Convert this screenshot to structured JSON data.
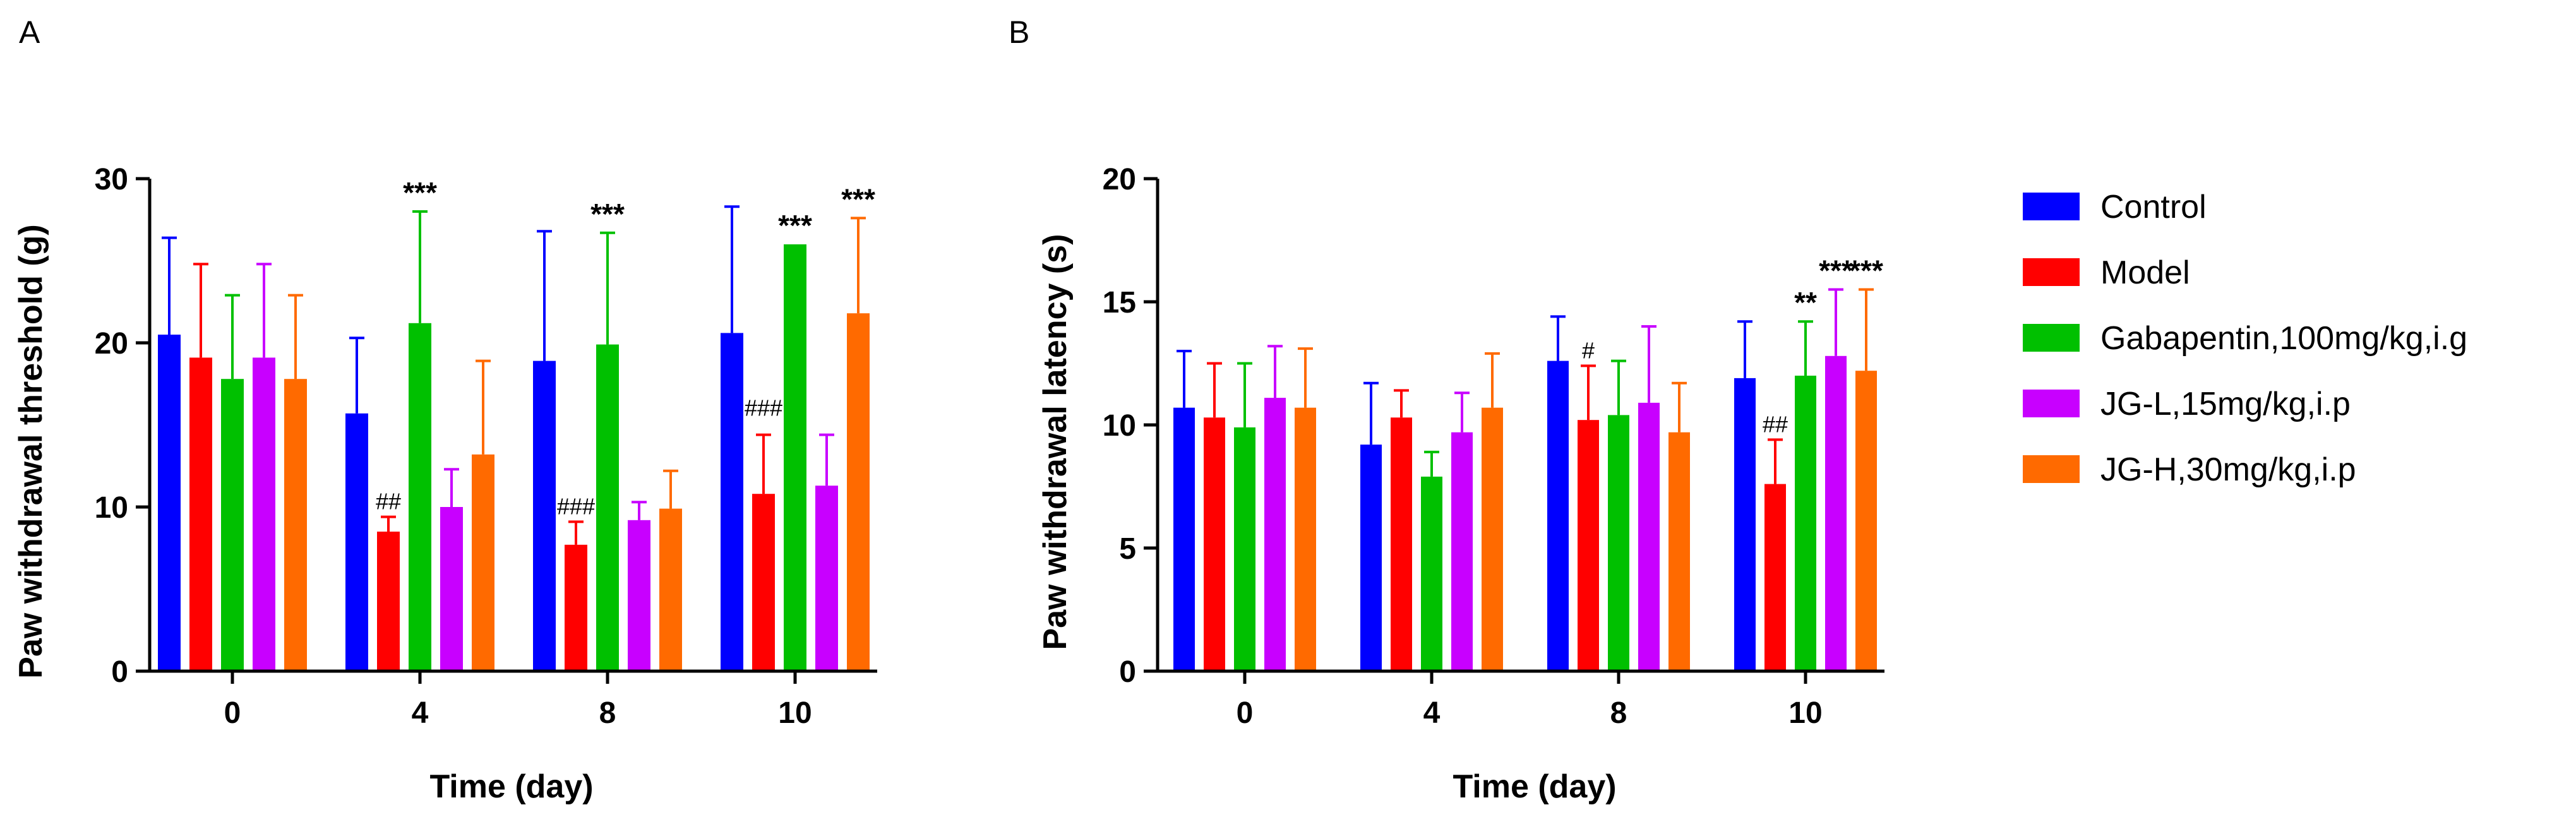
{
  "series_colors": [
    "#0000ff",
    "#ff0000",
    "#00c000",
    "#c800ff",
    "#ff6a00"
  ],
  "chart_data": [
    {
      "panel": "A",
      "type": "bar",
      "categories": [
        "0",
        "4",
        "8",
        "10"
      ],
      "xlabel": "Time (day)",
      "ylabel": "Paw withdrawal threshold (g)",
      "ylim": [
        0,
        30
      ],
      "yticks": [
        "0",
        "10",
        "20",
        "30"
      ],
      "series": [
        {
          "name": "Control",
          "values": [
            20.5,
            15.7,
            18.9,
            20.6
          ],
          "errors": [
            5.9,
            4.6,
            7.9,
            7.7
          ]
        },
        {
          "name": "Model",
          "values": [
            19.1,
            8.5,
            7.7,
            10.8
          ],
          "errors": [
            5.7,
            0.9,
            1.4,
            3.6
          ]
        },
        {
          "name": "Gabapentin,100mg/kg,i.g",
          "values": [
            17.8,
            21.2,
            19.9,
            26.0
          ],
          "errors": [
            5.1,
            6.8,
            6.8,
            0.0
          ]
        },
        {
          "name": "JG-L,15mg/kg,i.p",
          "values": [
            19.1,
            10.0,
            9.2,
            11.3
          ],
          "errors": [
            5.7,
            2.3,
            1.1,
            3.1
          ]
        },
        {
          "name": "JG-H,30mg/kg,i.p",
          "values": [
            17.8,
            13.2,
            9.9,
            21.8
          ],
          "errors": [
            5.1,
            5.7,
            2.3,
            5.8
          ]
        }
      ],
      "annotations": [
        {
          "category": "4",
          "series": "Model",
          "text": "##"
        },
        {
          "category": "4",
          "series": "Gabapentin,100mg/kg,i.g",
          "text": "***"
        },
        {
          "category": "8",
          "series": "Model",
          "text": "###"
        },
        {
          "category": "8",
          "series": "Gabapentin,100mg/kg,i.g",
          "text": "***"
        },
        {
          "category": "10",
          "series": "Model",
          "text": "###"
        },
        {
          "category": "10",
          "series": "Gabapentin,100mg/kg,i.g",
          "text": "***"
        },
        {
          "category": "10",
          "series": "JG-H,30mg/kg,i.p",
          "text": "***"
        }
      ]
    },
    {
      "panel": "B",
      "type": "bar",
      "categories": [
        "0",
        "4",
        "8",
        "10"
      ],
      "xlabel": "Time (day)",
      "ylabel": "Paw withdrawal latency (s)",
      "ylim": [
        0,
        20
      ],
      "yticks": [
        "0",
        "5",
        "10",
        "15",
        "20"
      ],
      "series": [
        {
          "name": "Control",
          "values": [
            10.7,
            9.2,
            12.6,
            11.9
          ],
          "errors": [
            2.3,
            2.5,
            1.8,
            2.3
          ]
        },
        {
          "name": "Model",
          "values": [
            10.3,
            10.3,
            10.2,
            7.6
          ],
          "errors": [
            2.2,
            1.1,
            2.2,
            1.8
          ]
        },
        {
          "name": "Gabapentin,100mg/kg,i.g",
          "values": [
            9.9,
            7.9,
            10.4,
            12.0
          ],
          "errors": [
            2.6,
            1.0,
            2.2,
            2.2
          ]
        },
        {
          "name": "JG-L,15mg/kg,i.p",
          "values": [
            11.1,
            9.7,
            10.9,
            12.8
          ],
          "errors": [
            2.1,
            1.6,
            3.1,
            2.7
          ]
        },
        {
          "name": "JG-H,30mg/kg,i.p",
          "values": [
            10.7,
            10.7,
            9.7,
            12.2
          ],
          "errors": [
            2.4,
            2.2,
            2.0,
            3.3
          ]
        }
      ],
      "annotations": [
        {
          "category": "8",
          "series": "Model",
          "text": "#"
        },
        {
          "category": "10",
          "series": "Model",
          "text": "##"
        },
        {
          "category": "10",
          "series": "Gabapentin,100mg/kg,i.g",
          "text": "**"
        },
        {
          "category": "10",
          "series": "JG-L,15mg/kg,i.p",
          "text": "***"
        },
        {
          "category": "10",
          "series": "JG-H,30mg/kg,i.p",
          "text": "***"
        }
      ]
    }
  ],
  "legend": {
    "position": "right",
    "items": [
      "Control",
      "Model",
      "Gabapentin,100mg/kg,i.g",
      "JG-L,15mg/kg,i.p",
      "JG-H,30mg/kg,i.p"
    ]
  }
}
